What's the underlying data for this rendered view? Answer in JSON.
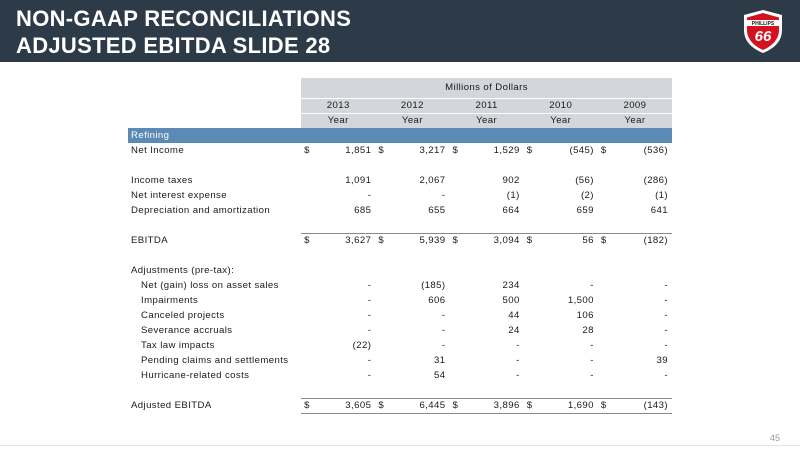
{
  "header": {
    "title_line1": "NON-GAAP RECONCILIATIONS",
    "title_line2": "ADJUSTED EBITDA SLIDE 28",
    "logo_top_text": "PHILLIPS",
    "logo_number": "66"
  },
  "table": {
    "units_label": "Millions of Dollars",
    "years": [
      "2013",
      "2012",
      "2011",
      "2010",
      "2009"
    ],
    "period": [
      "Year",
      "Year",
      "Year",
      "Year",
      "Year"
    ],
    "segment": "Refining",
    "currency_symbol": "$",
    "net_income": {
      "label": "Net Income",
      "values": [
        "1,851",
        "3,217",
        "1,529",
        "(545)",
        "(536)"
      ]
    },
    "income_taxes": {
      "label": "Income taxes",
      "values": [
        "1,091",
        "2,067",
        "902",
        "(56)",
        "(286)"
      ]
    },
    "net_interest": {
      "label": "Net interest expense",
      "values": [
        "-",
        "-",
        "(1)",
        "(2)",
        "(1)"
      ]
    },
    "depreciation": {
      "label": "Depreciation and amortization",
      "values": [
        "685",
        "655",
        "664",
        "659",
        "641"
      ]
    },
    "ebitda": {
      "label": "EBITDA",
      "values": [
        "3,627",
        "5,939",
        "3,094",
        "56",
        "(182)"
      ]
    },
    "adjustments_label": "Adjustments (pre-tax):",
    "asset_sales": {
      "label": "Net (gain) loss on asset sales",
      "values": [
        "-",
        "(185)",
        "234",
        "-",
        "-"
      ]
    },
    "impairments": {
      "label": "Impairments",
      "values": [
        "-",
        "606",
        "500",
        "1,500",
        "-"
      ]
    },
    "canceled": {
      "label": "Canceled projects",
      "values": [
        "-",
        "-",
        "44",
        "106",
        "-"
      ]
    },
    "severance": {
      "label": "Severance accruals",
      "values": [
        "-",
        "-",
        "24",
        "28",
        "-"
      ]
    },
    "tax_law": {
      "label": "Tax law impacts",
      "values": [
        "(22)",
        "-",
        "-",
        "-",
        "-"
      ]
    },
    "pending": {
      "label": "Pending claims and settlements",
      "values": [
        "-",
        "31",
        "-",
        "-",
        "39"
      ]
    },
    "hurricane": {
      "label": "Hurricane-related costs",
      "values": [
        "-",
        "54",
        "-",
        "-",
        "-"
      ]
    },
    "adjusted_ebitda": {
      "label": "Adjusted EBITDA",
      "values": [
        "3,605",
        "6,445",
        "3,896",
        "1,690",
        "(143)"
      ]
    }
  },
  "footer": {
    "page_number": "45"
  },
  "colors": {
    "header_bg": "#2d3a47",
    "segment_bg": "#5b8ab5",
    "band_bg": "#d3d6da",
    "logo_red": "#d6111f"
  }
}
